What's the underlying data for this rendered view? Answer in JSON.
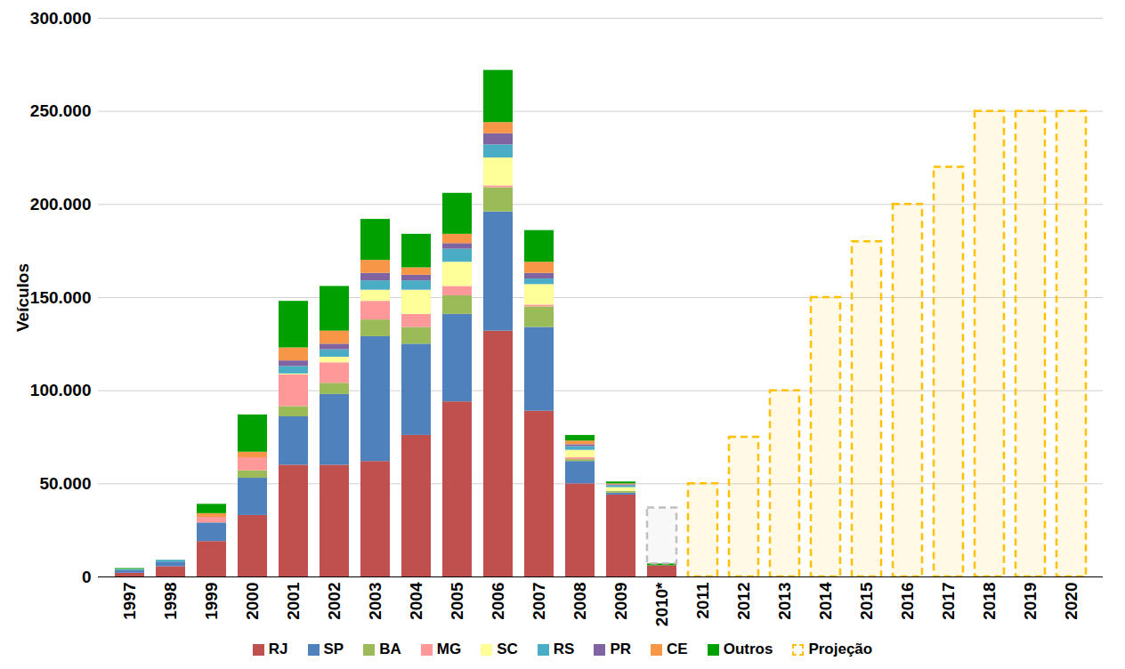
{
  "chart_data": {
    "type": "bar",
    "stacked": true,
    "grid": true,
    "legend": "bottom",
    "y_label": "Veículos",
    "categories": [
      "1997",
      "1998",
      "1999",
      "2000",
      "2001",
      "2002",
      "2003",
      "2004",
      "2005",
      "2006",
      "2007",
      "2008",
      "2009",
      "2010*",
      "2011",
      "2012",
      "2013",
      "2014",
      "2015",
      "2016",
      "2017",
      "2018",
      "2019",
      "2020"
    ],
    "ylim": [
      0,
      300000
    ],
    "yticks": [
      0,
      {
        "value": 50000,
        "label": "50.000"
      },
      {
        "value": 100000,
        "label": "100.000"
      },
      {
        "value": 150000,
        "label": "150.000"
      },
      {
        "value": 200000,
        "label": "200.000"
      },
      {
        "value": 250000,
        "label": "250.000"
      },
      {
        "value": 300000,
        "label": "300.000"
      }
    ],
    "series": [
      {
        "name": "RJ",
        "color": "#c0504d",
        "values": [
          2000,
          5500,
          19000,
          33000,
          60000,
          60000,
          62000,
          76000,
          94000,
          132000,
          89000,
          50000,
          44000,
          6000,
          null,
          null,
          null,
          null,
          null,
          null,
          null,
          null,
          null,
          null
        ]
      },
      {
        "name": "SP",
        "color": "#4f81bd",
        "values": [
          1500,
          2500,
          10000,
          20000,
          26000,
          38000,
          67000,
          49000,
          47000,
          64000,
          45000,
          12000,
          1000,
          0,
          null,
          null,
          null,
          null,
          null,
          null,
          null,
          null,
          null,
          null
        ]
      },
      {
        "name": "BA",
        "color": "#9bbb59",
        "values": [
          0,
          0,
          0,
          4000,
          5500,
          6000,
          9000,
          9000,
          10000,
          13000,
          11000,
          1000,
          1000,
          0,
          null,
          null,
          null,
          null,
          null,
          null,
          null,
          null,
          null,
          null
        ]
      },
      {
        "name": "MG",
        "color": "#ff9999",
        "values": [
          0,
          0,
          3000,
          7000,
          17000,
          11000,
          10000,
          7000,
          5000,
          1000,
          1000,
          1000,
          0,
          0,
          null,
          null,
          null,
          null,
          null,
          null,
          null,
          null,
          null,
          null
        ]
      },
      {
        "name": "SC",
        "color": "#ffff99",
        "values": [
          0,
          0,
          0,
          0,
          500,
          3000,
          6000,
          13000,
          13000,
          15000,
          11000,
          4000,
          2000,
          0,
          null,
          null,
          null,
          null,
          null,
          null,
          null,
          null,
          null,
          null
        ]
      },
      {
        "name": "RS",
        "color": "#4bacc6",
        "values": [
          500,
          1000,
          0,
          0,
          4000,
          4000,
          5000,
          5000,
          7000,
          7000,
          3000,
          2000,
          1000,
          0,
          null,
          null,
          null,
          null,
          null,
          null,
          null,
          null,
          null,
          null
        ]
      },
      {
        "name": "PR",
        "color": "#8064a2",
        "values": [
          0,
          0,
          0,
          0,
          3000,
          3000,
          4000,
          3000,
          3000,
          6000,
          3000,
          1000,
          500,
          0,
          null,
          null,
          null,
          null,
          null,
          null,
          null,
          null,
          null,
          null
        ]
      },
      {
        "name": "CE",
        "color": "#f79646",
        "values": [
          0,
          0,
          2000,
          3000,
          7000,
          7000,
          7000,
          4000,
          5000,
          6000,
          6000,
          2000,
          500,
          0,
          null,
          null,
          null,
          null,
          null,
          null,
          null,
          null,
          null,
          null
        ]
      },
      {
        "name": "Outros",
        "color": "#00a000",
        "values": [
          500,
          0,
          5000,
          20000,
          25000,
          24000,
          22000,
          18000,
          22000,
          28000,
          17000,
          3000,
          1000,
          1000,
          null,
          null,
          null,
          null,
          null,
          null,
          null,
          null,
          null,
          null
        ]
      },
      {
        "color": "#bfbfbf",
        "line_style": "dashed",
        "values": [
          null,
          null,
          null,
          null,
          null,
          null,
          null,
          null,
          null,
          null,
          null,
          null,
          null,
          30000,
          null,
          null,
          null,
          null,
          null,
          null,
          null,
          null,
          null,
          null
        ]
      },
      {
        "name": "Projeção",
        "color": "#ffc000",
        "line_style": "dashed",
        "values": [
          null,
          null,
          null,
          null,
          null,
          null,
          null,
          null,
          null,
          null,
          null,
          null,
          null,
          null,
          50000,
          75000,
          100000,
          150000,
          180000,
          200000,
          220000,
          250000,
          250000,
          250000
        ]
      }
    ]
  }
}
